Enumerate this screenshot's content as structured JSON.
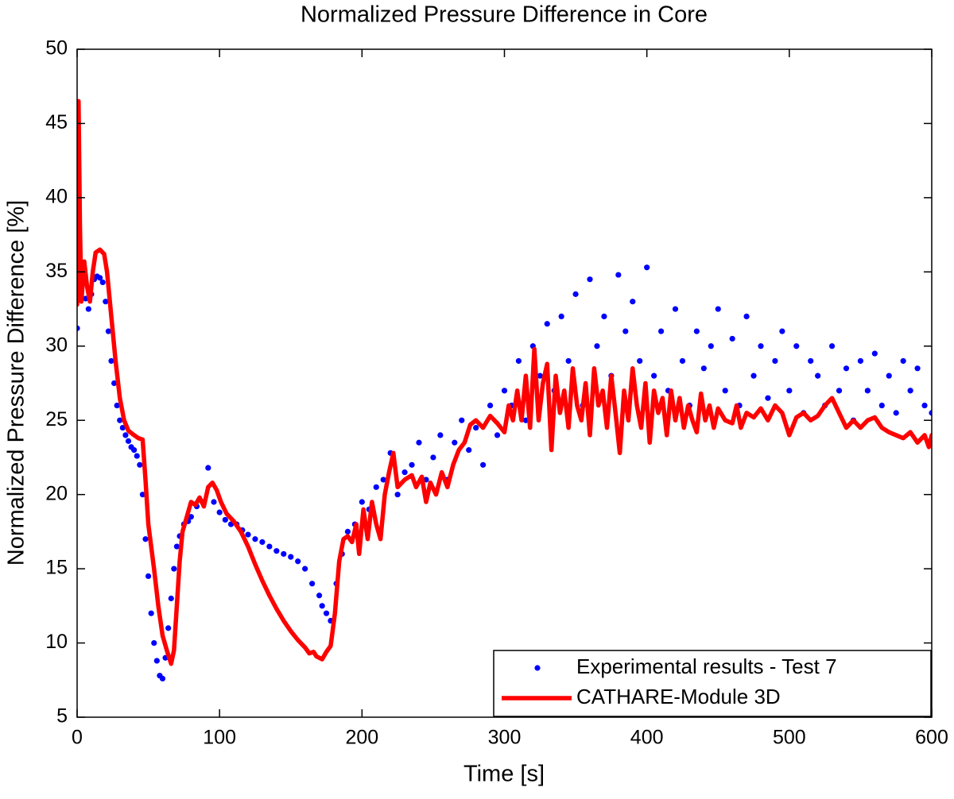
{
  "chart_data": {
    "type": "line",
    "title": "Normalized Pressure Difference in Core",
    "xlabel": "Time [s]",
    "ylabel": "Normalized Pressure Difference [%]",
    "xlim": [
      0,
      600
    ],
    "xticks": [
      0,
      100,
      200,
      300,
      400,
      500,
      600
    ],
    "ylim": [
      5,
      50
    ],
    "yticks": [
      5,
      10,
      15,
      20,
      25,
      30,
      35,
      40,
      45,
      50
    ],
    "legend": "lower right",
    "grid": false,
    "series": [
      {
        "name": "Experimental results - Test 7",
        "color": "#0000ff",
        "type": "scatter",
        "x": [
          0,
          2,
          4,
          6,
          8,
          10,
          12,
          14,
          16,
          18,
          20,
          22,
          24,
          26,
          28,
          30,
          32,
          34,
          36,
          38,
          40,
          42,
          44,
          46,
          48,
          50,
          52,
          54,
          56,
          58,
          60,
          62,
          64,
          66,
          68,
          70,
          72,
          75,
          78,
          80,
          84,
          88,
          92,
          96,
          100,
          104,
          108,
          112,
          116,
          120,
          125,
          130,
          135,
          140,
          145,
          150,
          155,
          160,
          165,
          170,
          172,
          175,
          178,
          182,
          186,
          190,
          195,
          200,
          205,
          210,
          215,
          220,
          225,
          230,
          235,
          240,
          245,
          250,
          255,
          260,
          265,
          270,
          275,
          280,
          285,
          290,
          295,
          300,
          305,
          310,
          315,
          320,
          325,
          330,
          335,
          340,
          345,
          350,
          355,
          360,
          365,
          370,
          375,
          380,
          385,
          390,
          395,
          400,
          405,
          410,
          415,
          420,
          425,
          430,
          435,
          440,
          445,
          450,
          455,
          460,
          465,
          470,
          475,
          480,
          485,
          490,
          495,
          500,
          505,
          510,
          515,
          520,
          525,
          530,
          535,
          540,
          545,
          550,
          555,
          560,
          565,
          570,
          575,
          580,
          585,
          590,
          595,
          600
        ],
        "values": [
          31.2,
          33.5,
          34.8,
          33.2,
          32.5,
          33.5,
          34.5,
          34.7,
          34.6,
          34.3,
          33,
          31,
          29,
          27.5,
          26,
          25,
          24.5,
          24,
          23.6,
          23.2,
          23,
          22.6,
          22,
          20,
          17,
          14.5,
          12,
          10,
          8.8,
          7.8,
          7.6,
          9,
          11,
          13,
          15,
          16.5,
          17.2,
          18,
          18.2,
          18.5,
          19.2,
          19.5,
          21.8,
          19.5,
          18.8,
          18.3,
          18.0,
          18.0,
          17.6,
          17.3,
          17.0,
          16.8,
          16.5,
          16.2,
          16.0,
          15.8,
          15.5,
          15.0,
          14.0,
          13.2,
          12.5,
          12,
          11.5,
          14,
          16,
          17.5,
          18,
          19.5,
          19,
          20.5,
          21,
          22.8,
          20,
          21.5,
          22,
          23.5,
          21,
          22.5,
          24,
          21,
          23.5,
          25,
          23,
          24.5,
          22,
          26,
          24,
          27,
          26,
          29,
          25,
          30,
          28,
          31.5,
          27,
          32,
          29,
          33.5,
          26,
          34.5,
          30,
          32,
          28,
          34.8,
          31,
          33,
          29,
          35.3,
          28,
          31,
          27,
          32.5,
          29,
          26,
          31,
          28.5,
          30,
          32.5,
          27,
          30.5,
          26,
          32,
          28,
          30,
          26.5,
          29,
          31,
          27,
          30,
          25.5,
          29,
          28,
          26,
          30,
          27,
          28.5,
          25,
          29,
          27,
          29.5,
          26,
          28,
          25.5,
          29,
          27,
          28.5,
          26,
          25.5
        ]
      },
      {
        "name": "CATHARE-Module 3D",
        "color": "#ff0000",
        "type": "line",
        "x": [
          0,
          1,
          2,
          3,
          5,
          7,
          9,
          11,
          13,
          16,
          19,
          21,
          24,
          27,
          30,
          33,
          36,
          40,
          43,
          46,
          48,
          50,
          54,
          57,
          60,
          63,
          66,
          68,
          70,
          72,
          74,
          77,
          80,
          83,
          86,
          89,
          92,
          95,
          98,
          101,
          105,
          110,
          115,
          120,
          125,
          130,
          135,
          140,
          145,
          150,
          155,
          160,
          163,
          166,
          168,
          170,
          172,
          175,
          178,
          181,
          184,
          187,
          190,
          193,
          196,
          198,
          201,
          204,
          207,
          210,
          213,
          216,
          219,
          222,
          225,
          230,
          235,
          238,
          242,
          245,
          248,
          252,
          256,
          260,
          264,
          268,
          272,
          276,
          280,
          285,
          290,
          295,
          300,
          303,
          306,
          309,
          312,
          315,
          318,
          321,
          324,
          327,
          330,
          333,
          336,
          339,
          342,
          345,
          348,
          351,
          354,
          357,
          360,
          363,
          366,
          369,
          372,
          375,
          378,
          381,
          384,
          387,
          390,
          393,
          396,
          399,
          402,
          405,
          408,
          411,
          414,
          417,
          420,
          423,
          426,
          429,
          432,
          435,
          438,
          441,
          444,
          447,
          450,
          455,
          460,
          463,
          466,
          470,
          475,
          480,
          485,
          490,
          495,
          500,
          505,
          510,
          515,
          520,
          525,
          530,
          535,
          540,
          545,
          550,
          555,
          560,
          565,
          570,
          575,
          580,
          585,
          590,
          595,
          598,
          600
        ],
        "values": [
          32.8,
          46.5,
          38,
          33,
          35.7,
          34,
          33,
          35,
          36.3,
          36.5,
          36.2,
          35,
          32,
          29,
          26.5,
          25,
          24.3,
          24,
          23.8,
          23.7,
          21,
          18,
          15,
          12.5,
          10.5,
          9.5,
          8.6,
          9.5,
          12.5,
          15.5,
          17.5,
          18.5,
          19.5,
          19.3,
          19.8,
          19.2,
          20.5,
          20.8,
          20.3,
          19.5,
          18.7,
          18.2,
          17.5,
          16.5,
          15.3,
          14.2,
          13.2,
          12.3,
          11.5,
          10.8,
          10.2,
          9.7,
          9.3,
          9.4,
          9.1,
          9.0,
          8.9,
          9.4,
          9.8,
          12,
          15.5,
          17,
          17.2,
          16.8,
          18,
          16,
          19,
          17,
          19.5,
          18,
          17,
          20,
          21.5,
          22.8,
          20.5,
          21,
          21.3,
          20.5,
          21.2,
          19.5,
          20.8,
          20,
          21.5,
          20.5,
          22,
          23,
          23.5,
          24.7,
          25,
          24.5,
          25.3,
          24.8,
          24.2,
          26,
          25,
          27,
          25,
          28,
          24.5,
          29.8,
          25,
          27.5,
          28.8,
          23,
          28,
          25.5,
          27,
          24.5,
          28.5,
          26,
          25,
          27.5,
          24,
          28.5,
          26,
          27,
          24.5,
          28,
          25.5,
          22.8,
          27,
          25,
          28.5,
          26,
          24.5,
          27.5,
          23.5,
          27,
          25.5,
          26.5,
          24,
          27,
          25,
          26.5,
          24.5,
          26,
          25,
          24.2,
          26.8,
          25,
          26,
          24.5,
          25.8,
          25,
          24.8,
          26,
          24.5,
          25.5,
          25.2,
          25.8,
          25,
          26,
          25.5,
          24,
          25.2,
          25.5,
          25,
          25.3,
          26,
          26.5,
          25.5,
          24.5,
          25,
          24.5,
          25,
          25.2,
          24.5,
          24.2,
          24,
          23.8,
          24.2,
          23.5,
          24,
          23.2,
          24
        ]
      }
    ]
  }
}
